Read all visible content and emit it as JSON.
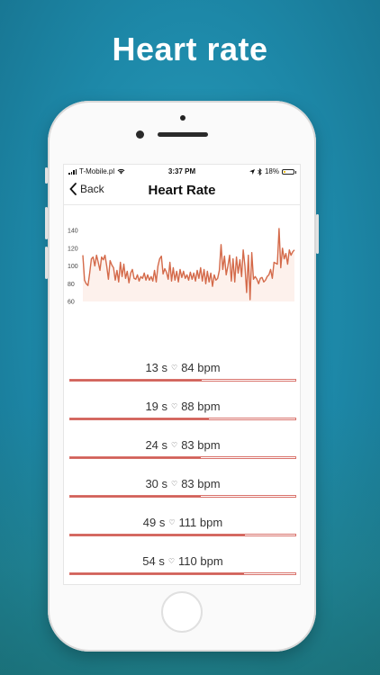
{
  "headline": "Heart rate",
  "status_bar": {
    "carrier": "T-Mobile.pl",
    "time": "3:37 PM",
    "battery": "18%",
    "battery_level": 0.18
  },
  "nav": {
    "back_label": "Back",
    "title": "Heart Rate"
  },
  "colors": {
    "accent": "#cf5f57",
    "line": "#d46a4a",
    "fill": "#fdf1ec",
    "background": "#1d88a8"
  },
  "chart_data": {
    "type": "line",
    "y_ticks": [
      "140",
      "120",
      "100",
      "80",
      "60"
    ],
    "ylim": [
      60,
      145
    ],
    "grid": false,
    "series": [
      {
        "values": [
          112,
          84,
          80,
          78,
          92,
          108,
          110,
          100,
          112,
          104,
          95,
          110,
          107,
          112,
          100,
          85,
          106,
          101,
          98,
          84,
          95,
          82,
          104,
          88,
          102,
          86,
          94,
          81,
          92,
          96,
          86,
          85,
          90,
          83,
          88,
          86,
          92,
          84,
          90,
          84,
          88,
          83,
          95,
          82,
          100,
          108,
          111,
          91,
          97,
          93,
          85,
          104,
          83,
          98,
          84,
          94,
          82,
          96,
          87,
          94,
          86,
          90,
          84,
          93,
          85,
          92,
          83,
          95,
          86,
          98,
          83,
          96,
          80,
          94,
          82,
          92,
          77,
          90,
          84,
          86,
          95,
          124,
          96,
          111,
          90,
          100,
          112,
          83,
          108,
          82,
          110,
          92,
          107,
          88,
          118,
          100,
          70,
          112,
          62,
          115,
          85,
          88,
          85,
          80,
          86,
          87,
          82,
          84,
          88,
          90,
          96,
          86,
          104,
          103,
          102,
          142,
          98,
          120,
          108,
          114,
          102,
          118,
          112,
          116,
          118
        ]
      }
    ]
  },
  "items": [
    {
      "label": "13 s",
      "bpm": "84 bpm",
      "fraction": 0.585
    },
    {
      "label": "19 s",
      "bpm": "88 bpm",
      "fraction": 0.615
    },
    {
      "label": "24 s",
      "bpm": "83 bpm",
      "fraction": 0.58
    },
    {
      "label": "30 s",
      "bpm": "83 bpm",
      "fraction": 0.58
    },
    {
      "label": "49 s",
      "bpm": "111 bpm",
      "fraction": 0.775
    },
    {
      "label": "54 s",
      "bpm": "110 bpm",
      "fraction": 0.77
    }
  ]
}
